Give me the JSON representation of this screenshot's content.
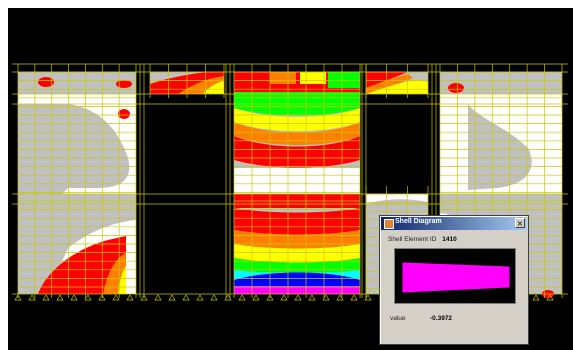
{
  "shell_dialog": {
    "title": "Shell Diagram",
    "close_glyph": "×",
    "element_id_label": "Shell Element ID",
    "element_id_value": "1410",
    "value_label": "value",
    "value_number": "-0.3972",
    "diagram_fill_color": "#ff00ff"
  },
  "contour_colors": {
    "gray": "#c0c0c0",
    "white": "#ffffff",
    "red": "#ff0000",
    "orange": "#ff8000",
    "yellow": "#ffff00",
    "green": "#00ff00",
    "cyan": "#00ffff",
    "blue": "#0000ff",
    "magenta": "#ff00ff"
  },
  "grid_color": "#c8c800",
  "icons": {
    "dialog_title_icon": "shell-diagram-app-icon"
  }
}
